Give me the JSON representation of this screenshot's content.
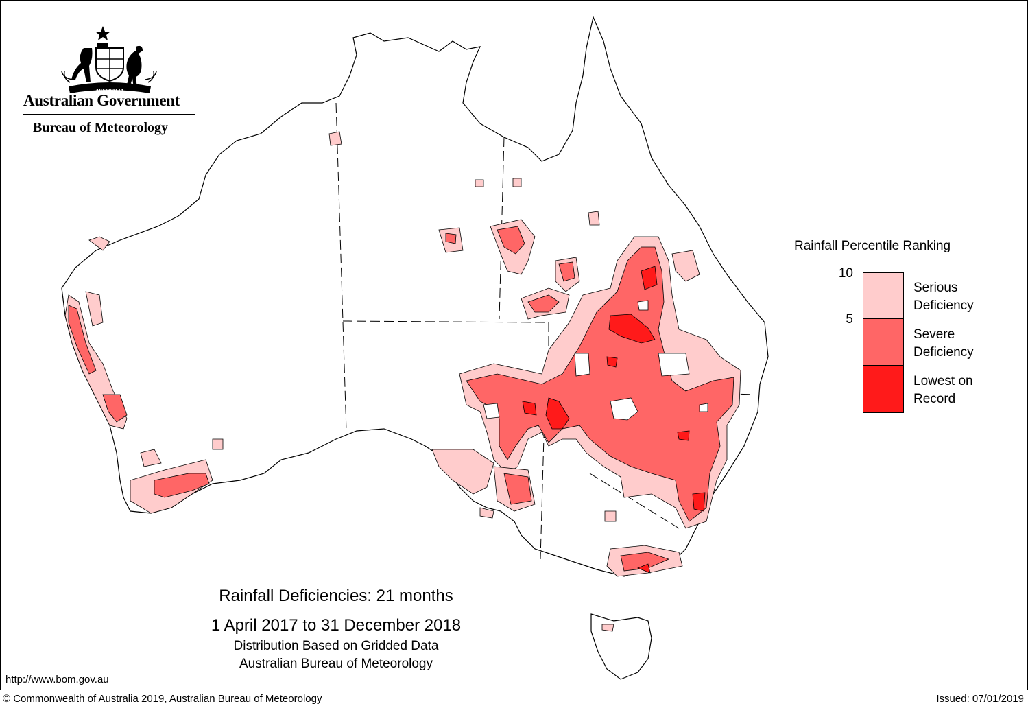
{
  "branding": {
    "crest": "commonwealth-coat-of-arms",
    "crest_scroll_text": "AUSTRALIA",
    "government": "Australian Government",
    "agency": "Bureau of Meteorology"
  },
  "legend": {
    "title": "Rainfall Percentile Ranking",
    "ticks": [
      "10",
      "5"
    ],
    "categories": [
      {
        "label_line1": "Serious",
        "label_line2": "Deficiency",
        "color": "#ffcccc"
      },
      {
        "label_line1": "Severe",
        "label_line2": "Deficiency",
        "color": "#ff6666"
      },
      {
        "label_line1": "Lowest on",
        "label_line2": "Record",
        "color": "#ff1a1a"
      }
    ]
  },
  "caption": {
    "title": "Rainfall Deficiencies: 21 months",
    "period": "1 April 2017 to 31 December 2018",
    "method": "Distribution Based on Gridded Data",
    "source": "Australian Bureau of Meteorology"
  },
  "footer": {
    "url": "http://www.bom.gov.au",
    "copyright": "© Commonwealth of Australia 2019, Australian Bureau of Meteorology",
    "issued": "Issued: 07/01/2019"
  },
  "colors": {
    "serious": "#ffcccc",
    "severe": "#ff6666",
    "lowest": "#ff1a1a",
    "outline": "#000000"
  }
}
